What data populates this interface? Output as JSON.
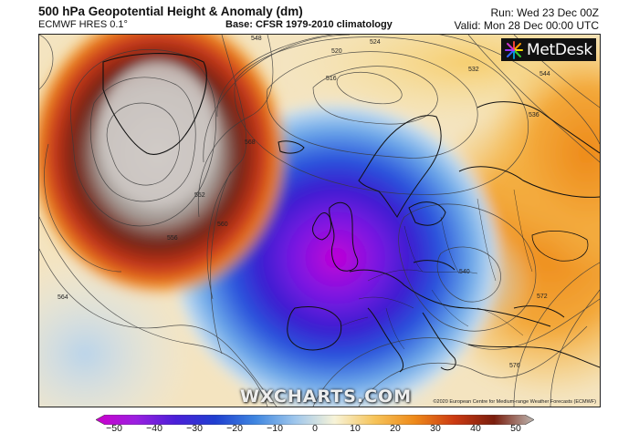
{
  "header": {
    "title": "500 hPa Geopotential Height & Anomaly (dm)",
    "model": "ECMWF HRES 0.1°",
    "base": "Base: CFSR 1979-2010 climatology",
    "run": "Run: Wed 23 Dec 00Z",
    "valid": "Valid: Mon 28 Dec 00:00 UTC"
  },
  "logo": {
    "text": "MetDesk"
  },
  "watermark": "WXCHARTS.COM",
  "copyright": "©2020 European Centre for Medium-range Weather Forecasts (ECMWF)",
  "contour_labels": [
    "516",
    "520",
    "524",
    "532",
    "536",
    "540",
    "544",
    "548",
    "552",
    "556",
    "560",
    "564",
    "568",
    "572",
    "576"
  ],
  "colorbar": {
    "min": -50,
    "max": 50,
    "ticks": [
      "−50",
      "−40",
      "−30",
      "−20",
      "−10",
      "0",
      "10",
      "20",
      "30",
      "40",
      "50"
    ],
    "colors": [
      "#cc00cc",
      "#9b1fe0",
      "#4a1fd8",
      "#1f3fd0",
      "#3f86e0",
      "#9fc7ec",
      "#f7f3d8",
      "#f6c45a",
      "#ee8a1a",
      "#cc3a12",
      "#7a1e0e",
      "#bdb6b0"
    ]
  }
}
